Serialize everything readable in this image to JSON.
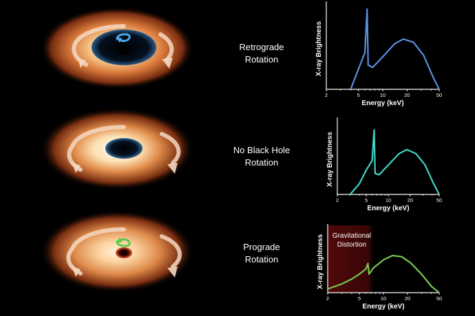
{
  "panels": [
    {
      "id": "retrograde",
      "label_line1": "Retrograde",
      "label_line2": "Rotation",
      "spin_color": "#4aa8e8",
      "curve_color": "#5b8fe0",
      "hole_style": "large",
      "annotation": null
    },
    {
      "id": "none",
      "label_line1": "No Black Hole",
      "label_line2": "Rotation",
      "spin_color": null,
      "curve_color": "#3fd6c8",
      "hole_style": "medium",
      "annotation": null
    },
    {
      "id": "prograde",
      "label_line1": "Prograde",
      "label_line2": "Rotation",
      "spin_color": "#5cc84a",
      "curve_color": "#78c850",
      "hole_style": "small",
      "annotation": {
        "line1": "Gravitational",
        "line2": "Distortion"
      }
    }
  ],
  "chart_common": {
    "ylabel": "X-ray Brightness",
    "xlabel": "Energy (keV)",
    "xticks": [
      "2",
      "5",
      "10",
      "20",
      "50"
    ],
    "xscale": "log",
    "xlim": [
      2,
      50
    ]
  },
  "chart_data": [
    {
      "type": "line",
      "title": "",
      "xlabel": "Energy (keV)",
      "ylabel": "X-ray Brightness",
      "xscale": "log",
      "xlim": [
        2,
        50
      ],
      "ylim": [
        0,
        1
      ],
      "series": [
        {
          "x": [
            4,
            5,
            6,
            6.4,
            6.6,
            7.5,
            10,
            14,
            18,
            24,
            32,
            42,
            50
          ],
          "y": [
            0.0,
            0.25,
            0.45,
            0.99,
            0.3,
            0.27,
            0.4,
            0.56,
            0.62,
            0.58,
            0.42,
            0.15,
            0.0
          ]
        }
      ]
    },
    {
      "type": "line",
      "title": "",
      "xlabel": "Energy (keV)",
      "ylabel": "X-ray Brightness",
      "xscale": "log",
      "xlim": [
        2,
        50
      ],
      "ylim": [
        0,
        1
      ],
      "series": [
        {
          "x": [
            3,
            4,
            5,
            6,
            6.4,
            6.6,
            7.5,
            10,
            14,
            18,
            24,
            32,
            42,
            50
          ],
          "y": [
            0.0,
            0.15,
            0.35,
            0.48,
            0.92,
            0.3,
            0.28,
            0.42,
            0.58,
            0.64,
            0.58,
            0.42,
            0.15,
            0.0
          ]
        }
      ]
    },
    {
      "type": "line",
      "title": "",
      "xlabel": "Energy (keV)",
      "ylabel": "X-ray Brightness",
      "xscale": "log",
      "xlim": [
        2,
        50
      ],
      "ylim": [
        0,
        1
      ],
      "series": [
        {
          "x": [
            2,
            3,
            4,
            5,
            6,
            6.4,
            6.6,
            7.5,
            10,
            13,
            17,
            22,
            30,
            40,
            50
          ],
          "y": [
            0.06,
            0.14,
            0.22,
            0.3,
            0.38,
            0.47,
            0.3,
            0.4,
            0.53,
            0.6,
            0.58,
            0.48,
            0.3,
            0.1,
            0.0
          ]
        }
      ]
    }
  ]
}
